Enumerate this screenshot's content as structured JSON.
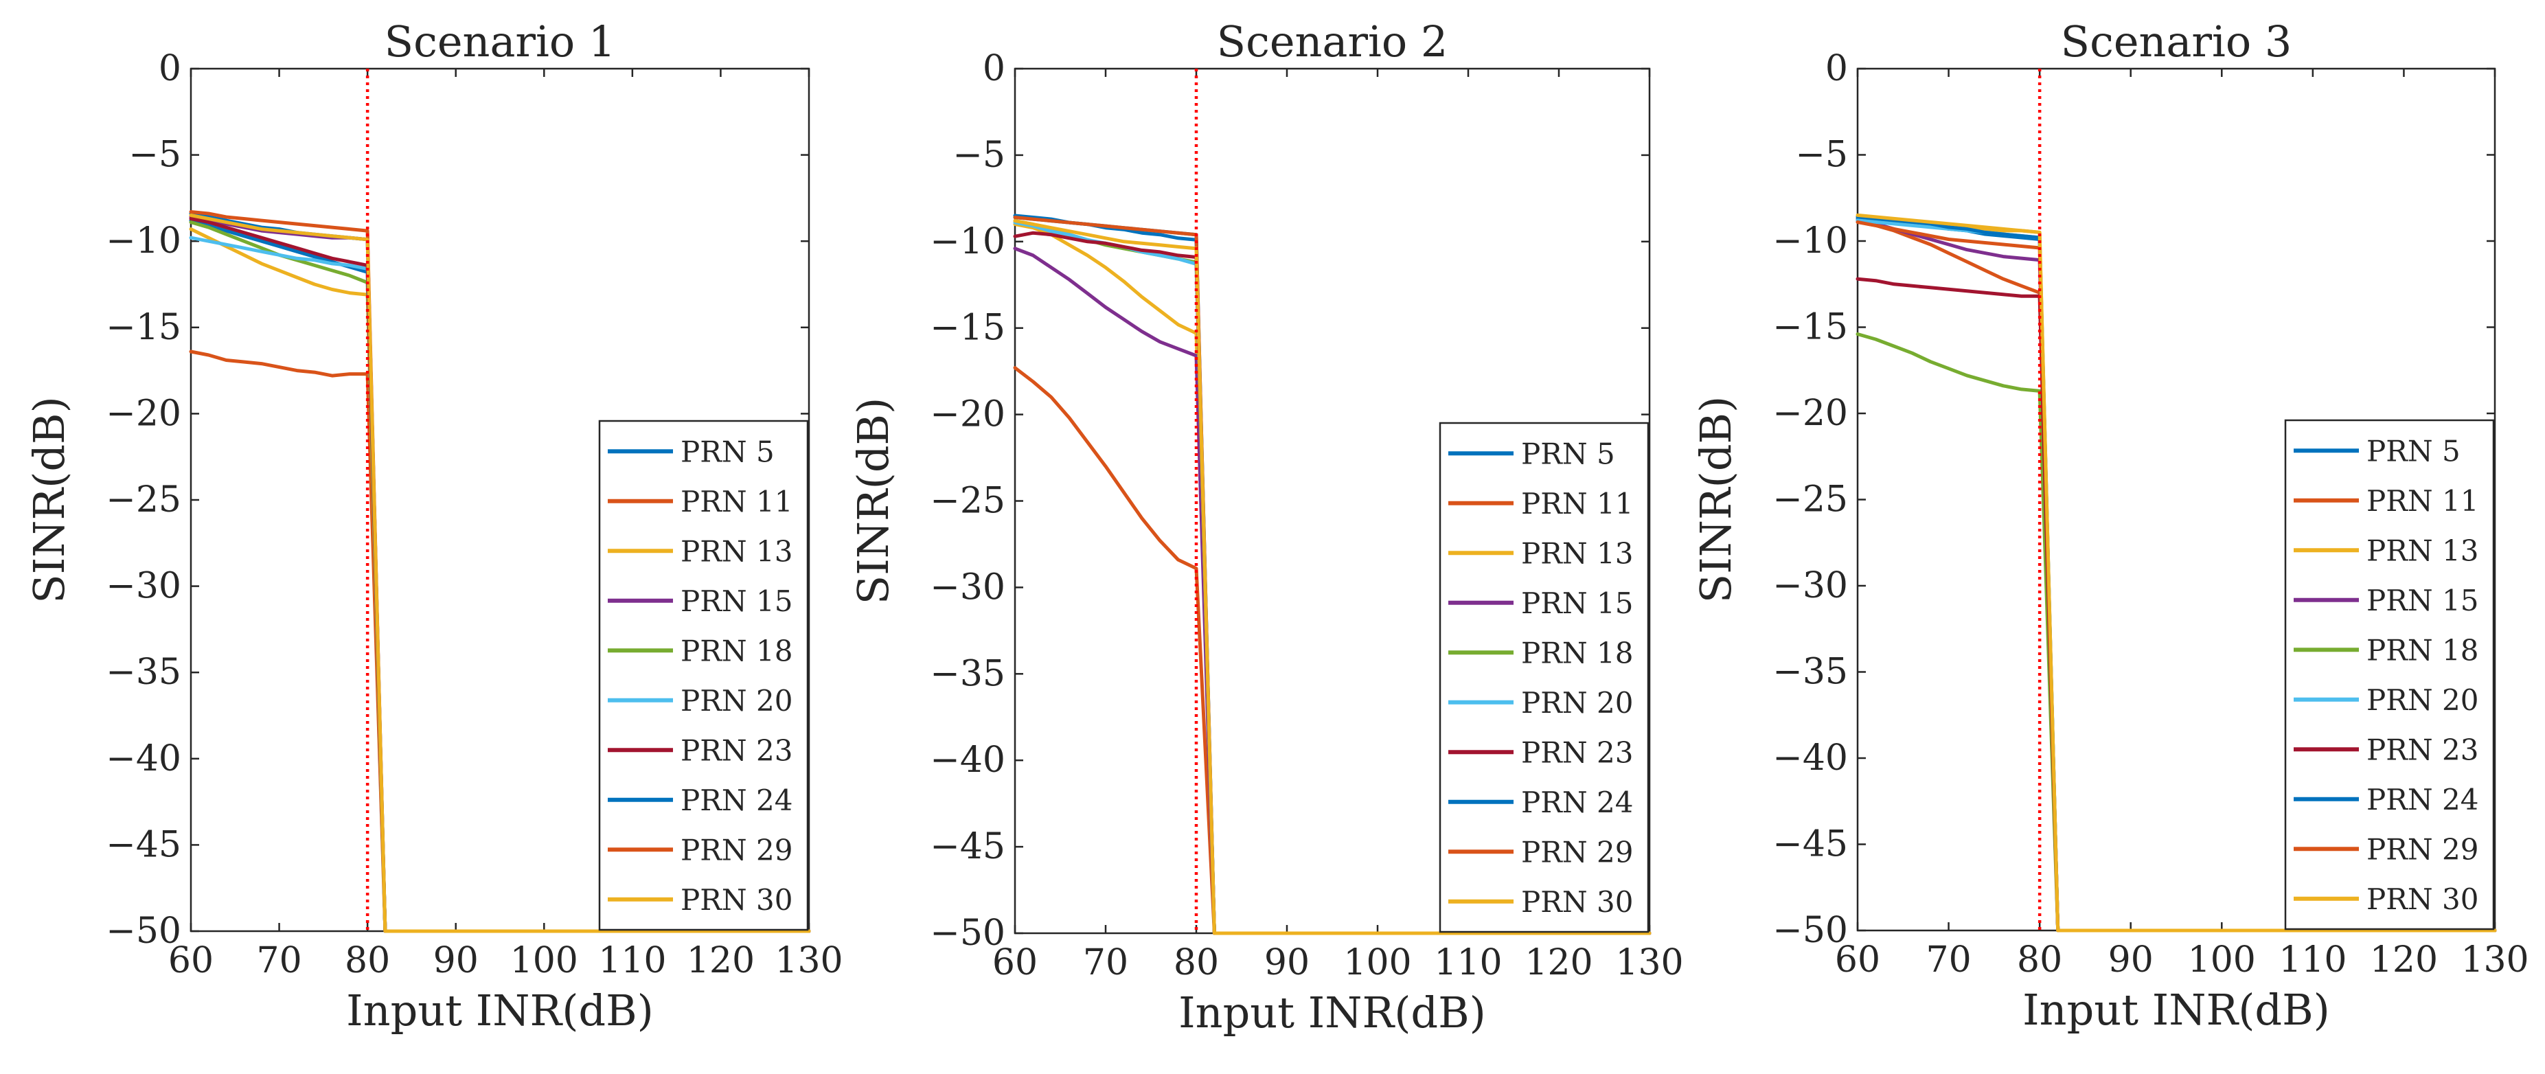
{
  "figure": {
    "description_free": true
  },
  "chart_data": [
    {
      "type": "line",
      "title": "Scenario 1",
      "xlabel": "Input INR(dB)",
      "ylabel": "SINR(dB)",
      "xlim": [
        60,
        130
      ],
      "ylim": [
        -50,
        0
      ],
      "xticks": [
        60,
        70,
        80,
        90,
        100,
        110,
        120,
        130
      ],
      "yticks": [
        0,
        -5,
        -10,
        -15,
        -20,
        -25,
        -30,
        -35,
        -40,
        -45,
        -50
      ],
      "threshold_x": 80,
      "legend_position": "bottom-right",
      "floor_value": -50,
      "drop_x": 82,
      "x": [
        60,
        62,
        64,
        66,
        68,
        70,
        72,
        74,
        76,
        78,
        80
      ],
      "series": [
        {
          "name": "PRN 5",
          "color": "#0072BD",
          "values": [
            -8.8,
            -9.1,
            -9.4,
            -9.7,
            -10.0,
            -10.3,
            -10.6,
            -10.9,
            -11.2,
            -11.5,
            -11.8
          ]
        },
        {
          "name": "PRN 11",
          "color": "#D95319",
          "values": [
            -16.4,
            -16.6,
            -16.9,
            -17.0,
            -17.1,
            -17.3,
            -17.5,
            -17.6,
            -17.8,
            -17.7,
            -17.7
          ]
        },
        {
          "name": "PRN 13",
          "color": "#EDB120",
          "values": [
            -9.3,
            -9.8,
            -10.3,
            -10.8,
            -11.3,
            -11.7,
            -12.1,
            -12.5,
            -12.8,
            -13.0,
            -13.1
          ]
        },
        {
          "name": "PRN 15",
          "color": "#7E2F8E",
          "values": [
            -8.6,
            -8.8,
            -9.0,
            -9.2,
            -9.4,
            -9.5,
            -9.6,
            -9.7,
            -9.8,
            -9.8,
            -9.9
          ]
        },
        {
          "name": "PRN 18",
          "color": "#77AC30",
          "values": [
            -8.9,
            -9.2,
            -9.6,
            -10.0,
            -10.4,
            -10.8,
            -11.1,
            -11.4,
            -11.7,
            -12.0,
            -12.4
          ]
        },
        {
          "name": "PRN 20",
          "color": "#4DBEEE",
          "values": [
            -9.8,
            -10.0,
            -10.2,
            -10.4,
            -10.6,
            -10.8,
            -11.0,
            -11.1,
            -11.3,
            -11.4,
            -11.6
          ]
        },
        {
          "name": "PRN 23",
          "color": "#A2142F",
          "values": [
            -8.7,
            -8.9,
            -9.2,
            -9.5,
            -9.8,
            -10.1,
            -10.4,
            -10.7,
            -11.0,
            -11.2,
            -11.4
          ]
        },
        {
          "name": "PRN 24",
          "color": "#0072BD",
          "values": [
            -8.4,
            -8.6,
            -8.8,
            -9.0,
            -9.2,
            -9.3,
            -9.5,
            -9.6,
            -9.7,
            -9.8,
            -9.9
          ]
        },
        {
          "name": "PRN 29",
          "color": "#D95319",
          "values": [
            -8.3,
            -8.4,
            -8.6,
            -8.7,
            -8.8,
            -8.9,
            -9.0,
            -9.1,
            -9.2,
            -9.3,
            -9.4
          ]
        },
        {
          "name": "PRN 30",
          "color": "#EDB120",
          "values": [
            -8.5,
            -8.7,
            -8.9,
            -9.1,
            -9.3,
            -9.4,
            -9.5,
            -9.6,
            -9.7,
            -9.8,
            -9.9
          ]
        }
      ]
    },
    {
      "type": "line",
      "title": "Scenario 2",
      "xlabel": "Input INR(dB)",
      "ylabel": "SINR(dB)",
      "xlim": [
        60,
        130
      ],
      "ylim": [
        -50,
        0
      ],
      "xticks": [
        60,
        70,
        80,
        90,
        100,
        110,
        120,
        130
      ],
      "yticks": [
        0,
        -5,
        -10,
        -15,
        -20,
        -25,
        -30,
        -35,
        -40,
        -45,
        -50
      ],
      "threshold_x": 80,
      "legend_position": "bottom-right",
      "floor_value": -50,
      "drop_x": 82,
      "x": [
        60,
        62,
        64,
        66,
        68,
        70,
        72,
        74,
        76,
        78,
        80
      ],
      "series": [
        {
          "name": "PRN 5",
          "color": "#0072BD",
          "values": [
            -8.6,
            -8.7,
            -8.8,
            -8.9,
            -9.0,
            -9.1,
            -9.2,
            -9.3,
            -9.4,
            -9.5,
            -9.6
          ]
        },
        {
          "name": "PRN 11",
          "color": "#D95319",
          "values": [
            -17.3,
            -18.1,
            -19.0,
            -20.2,
            -21.6,
            -23.0,
            -24.5,
            -26.0,
            -27.3,
            -28.4,
            -28.9
          ]
        },
        {
          "name": "PRN 13",
          "color": "#EDB120",
          "values": [
            -9.0,
            -9.2,
            -9.6,
            -10.2,
            -10.8,
            -11.5,
            -12.3,
            -13.2,
            -14.0,
            -14.8,
            -15.3
          ]
        },
        {
          "name": "PRN 15",
          "color": "#7E2F8E",
          "values": [
            -10.4,
            -10.8,
            -11.5,
            -12.2,
            -13.0,
            -13.8,
            -14.5,
            -15.2,
            -15.8,
            -16.2,
            -16.6
          ]
        },
        {
          "name": "PRN 18",
          "color": "#77AC30",
          "values": [
            -8.8,
            -9.0,
            -9.3,
            -9.6,
            -9.9,
            -10.2,
            -10.4,
            -10.6,
            -10.8,
            -11.0,
            -11.2
          ]
        },
        {
          "name": "PRN 20",
          "color": "#4DBEEE",
          "values": [
            -8.9,
            -9.1,
            -9.4,
            -9.6,
            -9.9,
            -10.1,
            -10.3,
            -10.6,
            -10.8,
            -11.0,
            -11.3
          ]
        },
        {
          "name": "PRN 23",
          "color": "#A2142F",
          "values": [
            -9.7,
            -9.5,
            -9.6,
            -9.8,
            -10.0,
            -10.1,
            -10.3,
            -10.5,
            -10.6,
            -10.8,
            -10.9
          ]
        },
        {
          "name": "PRN 24",
          "color": "#0072BD",
          "values": [
            -8.5,
            -8.6,
            -8.7,
            -8.9,
            -9.0,
            -9.2,
            -9.3,
            -9.5,
            -9.6,
            -9.8,
            -9.9
          ]
        },
        {
          "name": "PRN 29",
          "color": "#D95319",
          "values": [
            -8.6,
            -8.7,
            -8.8,
            -8.9,
            -9.0,
            -9.1,
            -9.2,
            -9.3,
            -9.4,
            -9.5,
            -9.6
          ]
        },
        {
          "name": "PRN 30",
          "color": "#EDB120",
          "values": [
            -8.8,
            -9.0,
            -9.2,
            -9.4,
            -9.6,
            -9.8,
            -10.0,
            -10.1,
            -10.2,
            -10.3,
            -10.4
          ]
        }
      ]
    },
    {
      "type": "line",
      "title": "Scenario 3",
      "xlabel": "Input INR(dB)",
      "ylabel": "SINR(dB)",
      "xlim": [
        60,
        130
      ],
      "ylim": [
        -50,
        0
      ],
      "xticks": [
        60,
        70,
        80,
        90,
        100,
        110,
        120,
        130
      ],
      "yticks": [
        0,
        -5,
        -10,
        -15,
        -20,
        -25,
        -30,
        -35,
        -40,
        -45,
        -50
      ],
      "threshold_x": 80,
      "legend_position": "bottom-right",
      "floor_value": -50,
      "drop_x": 82,
      "x": [
        60,
        62,
        64,
        66,
        68,
        70,
        72,
        74,
        76,
        78,
        80
      ],
      "series": [
        {
          "name": "PRN 5",
          "color": "#0072BD",
          "values": [
            -8.7,
            -8.8,
            -8.9,
            -9.0,
            -9.1,
            -9.3,
            -9.4,
            -9.6,
            -9.7,
            -9.8,
            -9.9
          ]
        },
        {
          "name": "PRN 11",
          "color": "#D95319",
          "values": [
            -8.9,
            -9.1,
            -9.4,
            -9.8,
            -10.2,
            -10.7,
            -11.2,
            -11.7,
            -12.2,
            -12.6,
            -13.0
          ]
        },
        {
          "name": "PRN 13",
          "color": "#EDB120",
          "values": [
            -8.6,
            -8.7,
            -8.8,
            -8.9,
            -9.0,
            -9.1,
            -9.2,
            -9.3,
            -9.4,
            -9.4,
            -9.5
          ]
        },
        {
          "name": "PRN 15",
          "color": "#7E2F8E",
          "values": [
            -8.8,
            -9.0,
            -9.3,
            -9.6,
            -9.9,
            -10.2,
            -10.5,
            -10.7,
            -10.9,
            -11.0,
            -11.1
          ]
        },
        {
          "name": "PRN 18",
          "color": "#77AC30",
          "values": [
            -15.4,
            -15.7,
            -16.1,
            -16.5,
            -17.0,
            -17.4,
            -17.8,
            -18.1,
            -18.4,
            -18.6,
            -18.7
          ]
        },
        {
          "name": "PRN 20",
          "color": "#4DBEEE",
          "values": [
            -8.8,
            -8.9,
            -9.0,
            -9.1,
            -9.2,
            -9.3,
            -9.4,
            -9.5,
            -9.6,
            -9.7,
            -9.8
          ]
        },
        {
          "name": "PRN 23",
          "color": "#A2142F",
          "values": [
            -12.2,
            -12.3,
            -12.5,
            -12.6,
            -12.7,
            -12.8,
            -12.9,
            -13.0,
            -13.1,
            -13.2,
            -13.2
          ]
        },
        {
          "name": "PRN 24",
          "color": "#0072BD",
          "values": [
            -8.6,
            -8.7,
            -8.8,
            -8.9,
            -9.0,
            -9.2,
            -9.3,
            -9.5,
            -9.6,
            -9.7,
            -9.8
          ]
        },
        {
          "name": "PRN 29",
          "color": "#D95319",
          "values": [
            -8.9,
            -9.1,
            -9.3,
            -9.5,
            -9.7,
            -9.9,
            -10.0,
            -10.1,
            -10.2,
            -10.3,
            -10.4
          ]
        },
        {
          "name": "PRN 30",
          "color": "#EDB120",
          "values": [
            -8.5,
            -8.6,
            -8.7,
            -8.8,
            -8.9,
            -9.0,
            -9.1,
            -9.2,
            -9.3,
            -9.4,
            -9.5
          ]
        }
      ]
    }
  ]
}
